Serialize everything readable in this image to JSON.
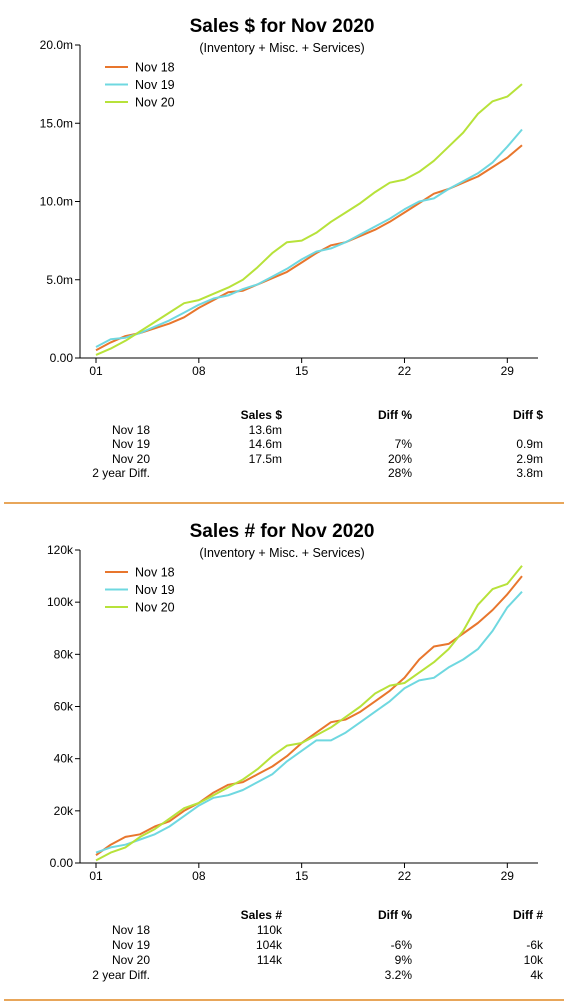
{
  "colors": {
    "nov18": "#e8762d",
    "nov19": "#6fd8e0",
    "nov20": "#b7e23a",
    "divider": "#e8a65a"
  },
  "panels": [
    {
      "title": "Sales $ for Nov 2020",
      "subtitle": "(Inventory + Misc. + Services)",
      "summary": {
        "headers": [
          "Sales $",
          "Diff %",
          "Diff $"
        ],
        "rows": [
          {
            "label": "Nov 18",
            "v1": "13.6m",
            "v2": "",
            "v3": ""
          },
          {
            "label": "Nov 19",
            "v1": "14.6m",
            "v2": "7%",
            "v3": "0.9m"
          },
          {
            "label": "Nov 20",
            "v1": "17.5m",
            "v2": "20%",
            "v3": "2.9m"
          },
          {
            "label": "2 year Diff.",
            "v1": "",
            "v2": "28%",
            "v3": "3.8m"
          }
        ]
      }
    },
    {
      "title": "Sales # for Nov 2020",
      "subtitle": "(Inventory + Misc. + Services)",
      "summary": {
        "headers": [
          "Sales #",
          "Diff %",
          "Diff #"
        ],
        "rows": [
          {
            "label": "Nov 18",
            "v1": "110k",
            "v2": "",
            "v3": ""
          },
          {
            "label": "Nov 19",
            "v1": "104k",
            "v2": "-6%",
            "v3": "-6k"
          },
          {
            "label": "Nov 20",
            "v1": "114k",
            "v2": "9%",
            "v3": "10k"
          },
          {
            "label": "2 year Diff.",
            "v1": "",
            "v2": "3.2%",
            "v3": "4k"
          }
        ]
      }
    }
  ],
  "chart_data": [
    {
      "type": "line",
      "title": "Sales $ for Nov 2020",
      "subtitle": "(Inventory + Misc. + Services)",
      "x": [
        1,
        2,
        3,
        4,
        5,
        6,
        7,
        8,
        9,
        10,
        11,
        12,
        13,
        14,
        15,
        16,
        17,
        18,
        19,
        20,
        21,
        22,
        23,
        24,
        25,
        26,
        27,
        28,
        29,
        30
      ],
      "xticks": [
        1,
        8,
        15,
        22,
        29
      ],
      "xtick_labels": [
        "01",
        "08",
        "15",
        "22",
        "29"
      ],
      "ylim": [
        0,
        20
      ],
      "yticks": [
        0,
        5,
        10,
        15,
        20
      ],
      "ytick_labels": [
        "0.00",
        "5.0m",
        "10.0m",
        "15.0m",
        "20.0m"
      ],
      "legend": "top-left",
      "grid": false,
      "series": [
        {
          "name": "Nov 18",
          "color_key": "nov18",
          "values": [
            0.5,
            1.0,
            1.4,
            1.6,
            1.9,
            2.2,
            2.6,
            3.2,
            3.7,
            4.2,
            4.3,
            4.7,
            5.1,
            5.5,
            6.1,
            6.7,
            7.2,
            7.4,
            7.8,
            8.2,
            8.7,
            9.3,
            9.9,
            10.5,
            10.8,
            11.2,
            11.6,
            12.2,
            12.8,
            13.6
          ]
        },
        {
          "name": "Nov 19",
          "color_key": "nov19",
          "values": [
            0.7,
            1.2,
            1.3,
            1.6,
            2.0,
            2.4,
            2.9,
            3.4,
            3.8,
            4.0,
            4.4,
            4.7,
            5.2,
            5.7,
            6.3,
            6.8,
            7.0,
            7.4,
            7.9,
            8.4,
            8.9,
            9.5,
            10.0,
            10.2,
            10.8,
            11.3,
            11.8,
            12.5,
            13.5,
            14.6
          ]
        },
        {
          "name": "Nov 20",
          "color_key": "nov20",
          "values": [
            0.2,
            0.6,
            1.1,
            1.7,
            2.3,
            2.9,
            3.5,
            3.7,
            4.1,
            4.5,
            5.0,
            5.8,
            6.7,
            7.4,
            7.5,
            8.0,
            8.7,
            9.3,
            9.9,
            10.6,
            11.2,
            11.4,
            11.9,
            12.6,
            13.5,
            14.4,
            15.6,
            16.4,
            16.7,
            17.5
          ]
        }
      ]
    },
    {
      "type": "line",
      "title": "Sales # for Nov 2020",
      "subtitle": "(Inventory + Misc. + Services)",
      "x": [
        1,
        2,
        3,
        4,
        5,
        6,
        7,
        8,
        9,
        10,
        11,
        12,
        13,
        14,
        15,
        16,
        17,
        18,
        19,
        20,
        21,
        22,
        23,
        24,
        25,
        26,
        27,
        28,
        29,
        30
      ],
      "xticks": [
        1,
        8,
        15,
        22,
        29
      ],
      "xtick_labels": [
        "01",
        "08",
        "15",
        "22",
        "29"
      ],
      "ylim": [
        0,
        120
      ],
      "yticks": [
        0,
        20,
        40,
        60,
        80,
        100,
        120
      ],
      "ytick_labels": [
        "0.00",
        "20k",
        "40k",
        "60k",
        "80k",
        "100k",
        "120k"
      ],
      "legend": "top-left",
      "grid": false,
      "series": [
        {
          "name": "Nov 18",
          "color_key": "nov18",
          "values": [
            3,
            7,
            10,
            11,
            14,
            16,
            20,
            23,
            27,
            30,
            31,
            34,
            37,
            41,
            46,
            50,
            54,
            55,
            58,
            62,
            66,
            71,
            78,
            83,
            84,
            88,
            92,
            97,
            103,
            110
          ]
        },
        {
          "name": "Nov 19",
          "color_key": "nov19",
          "values": [
            4,
            6,
            7,
            9,
            11,
            14,
            18,
            22,
            25,
            26,
            28,
            31,
            34,
            39,
            43,
            47,
            47,
            50,
            54,
            58,
            62,
            67,
            70,
            71,
            75,
            78,
            82,
            89,
            98,
            104
          ]
        },
        {
          "name": "Nov 20",
          "color_key": "nov20",
          "values": [
            1,
            4,
            6,
            10,
            13,
            17,
            21,
            23,
            26,
            29,
            32,
            36,
            41,
            45,
            46,
            49,
            52,
            56,
            60,
            65,
            68,
            69,
            73,
            77,
            82,
            89,
            99,
            105,
            107,
            114
          ]
        }
      ]
    }
  ]
}
